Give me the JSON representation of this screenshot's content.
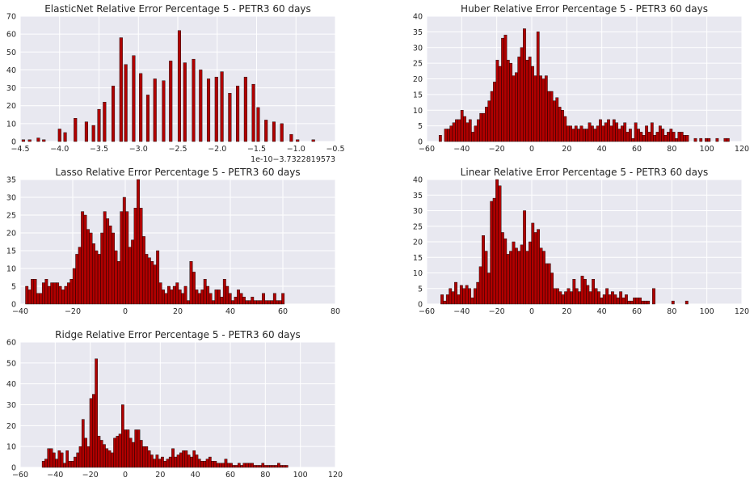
{
  "chart_data": [
    {
      "type": "bar",
      "title": "ElasticNet Relative Error Percentage 5 - PETR3 60 days",
      "x_offset_label": "1e-10−3.7322819573",
      "xlim": [
        -4.5,
        -0.5
      ],
      "ylim": [
        0,
        70
      ],
      "xticks": [
        -4.5,
        -4.0,
        -3.5,
        -3.0,
        -2.5,
        -2.0,
        -1.5,
        -1.0,
        -0.5
      ],
      "xtick_labels": [
        "−4.5",
        "−4.0",
        "−3.5",
        "−3.0",
        "−2.5",
        "−2.0",
        "−1.5",
        "−1.0",
        "−0.5"
      ],
      "yticks": [
        0,
        10,
        20,
        30,
        40,
        50,
        60,
        70
      ],
      "ytick_labels": [
        "0",
        "10",
        "20",
        "30",
        "40",
        "50",
        "60",
        "70"
      ],
      "bin_width": 0.0376,
      "x": [
        -4.46,
        -4.38,
        -4.27,
        -4.2,
        -4.0,
        -3.93,
        -3.8,
        -3.66,
        -3.57,
        -3.5,
        -3.43,
        -3.32,
        -3.22,
        -3.16,
        -3.06,
        -2.97,
        -2.88,
        -2.79,
        -2.68,
        -2.59,
        -2.48,
        -2.41,
        -2.3,
        -2.21,
        -2.11,
        -2.01,
        -1.94,
        -1.84,
        -1.74,
        -1.64,
        -1.54,
        -1.48,
        -1.38,
        -1.28,
        -1.18,
        -1.06,
        -0.98,
        -0.78
      ],
      "values": [
        1,
        1,
        2,
        1,
        7,
        5,
        13,
        11,
        9,
        18,
        22,
        31,
        58,
        43,
        48,
        38,
        26,
        35,
        34,
        45,
        62,
        44,
        46,
        40,
        35,
        36,
        39,
        27,
        31,
        36,
        32,
        19,
        12,
        11,
        10,
        4,
        1,
        1
      ]
    },
    {
      "type": "bar",
      "title": "Huber Relative Error Percentage 5 - PETR3 60 days",
      "xlim": [
        -60,
        120
      ],
      "ylim": [
        0,
        40
      ],
      "xticks": [
        -60,
        -40,
        -20,
        0,
        20,
        40,
        60,
        80,
        100,
        120
      ],
      "xtick_labels": [
        "−60",
        "−40",
        "−20",
        "0",
        "20",
        "40",
        "60",
        "80",
        "100",
        "120"
      ],
      "yticks": [
        0,
        5,
        10,
        15,
        20,
        25,
        30,
        35,
        40
      ],
      "ytick_labels": [
        "0",
        "5",
        "10",
        "15",
        "20",
        "25",
        "30",
        "35",
        "40"
      ],
      "x_start": -53,
      "bin_width": 1.55,
      "values": [
        2,
        0,
        4,
        4,
        5,
        6,
        7,
        7,
        10,
        8,
        6,
        7,
        3,
        5,
        7,
        9,
        9,
        11,
        13,
        16,
        19,
        26,
        24,
        33,
        34,
        26,
        25,
        21,
        22,
        27,
        30,
        36,
        26,
        27,
        24,
        21,
        35,
        21,
        20,
        21,
        16,
        16,
        13,
        14,
        11,
        10,
        8,
        5,
        5,
        4,
        5,
        4,
        5,
        4,
        4,
        6,
        5,
        4,
        5,
        7,
        5,
        6,
        7,
        5,
        7,
        6,
        4,
        5,
        6,
        3,
        4,
        1,
        6,
        4,
        3,
        2,
        5,
        3,
        6,
        2,
        3,
        5,
        4,
        2,
        3,
        4,
        3,
        1,
        3,
        3,
        2,
        2,
        0,
        0,
        1,
        0,
        1,
        0,
        1,
        1,
        0,
        0,
        1,
        0,
        0,
        1,
        1
      ]
    },
    {
      "type": "bar",
      "title": "Lasso Relative Error Percentage 5 - PETR3 60 days",
      "xlim": [
        -40,
        80
      ],
      "ylim": [
        0,
        35
      ],
      "xticks": [
        -40,
        -20,
        0,
        20,
        40,
        60,
        80
      ],
      "xtick_labels": [
        "−40",
        "−20",
        "0",
        "20",
        "40",
        "60",
        "80"
      ],
      "yticks": [
        0,
        5,
        10,
        15,
        20,
        25,
        30,
        35
      ],
      "ytick_labels": [
        "0",
        "5",
        "10",
        "15",
        "20",
        "25",
        "30",
        "35"
      ],
      "x_start": -38,
      "bin_width": 1.06,
      "values": [
        5,
        4,
        7,
        7,
        3,
        3,
        6,
        7,
        5,
        6,
        6,
        6,
        5,
        4,
        5,
        6,
        7,
        10,
        14,
        16,
        26,
        25,
        21,
        20,
        17,
        15,
        14,
        20,
        26,
        24,
        22,
        20,
        15,
        12,
        26,
        30,
        26,
        16,
        18,
        27,
        35,
        27,
        19,
        14,
        13,
        12,
        11,
        15,
        6,
        4,
        3,
        5,
        4,
        5,
        6,
        4,
        3,
        5,
        1,
        12,
        9,
        4,
        3,
        4,
        7,
        5,
        3,
        1,
        4,
        4,
        2,
        7,
        5,
        3,
        1,
        2,
        4,
        3,
        2,
        1,
        1,
        2,
        1,
        1,
        1,
        3,
        1,
        1,
        1,
        3,
        1,
        1,
        3
      ]
    },
    {
      "type": "bar",
      "title": "Linear Relative Error Percentage 5 - PETR3 60 days",
      "xlim": [
        -60,
        120
      ],
      "ylim": [
        0,
        40
      ],
      "xticks": [
        -60,
        -40,
        -20,
        0,
        20,
        40,
        60,
        80,
        100,
        120
      ],
      "xtick_labels": [
        "−60",
        "−40",
        "−20",
        "0",
        "20",
        "40",
        "60",
        "80",
        "100",
        "120"
      ],
      "yticks": [
        0,
        5,
        10,
        15,
        20,
        25,
        30,
        35,
        40
      ],
      "ytick_labels": [
        "0",
        "5",
        "10",
        "15",
        "20",
        "25",
        "30",
        "35",
        "40"
      ],
      "x_start": -52,
      "bin_width": 1.57,
      "values": [
        3,
        1,
        3,
        5,
        4,
        7,
        3,
        6,
        5,
        6,
        5,
        2,
        5,
        7,
        12,
        22,
        17,
        10,
        33,
        34,
        40,
        38,
        23,
        21,
        16,
        17,
        20,
        18,
        17,
        19,
        30,
        17,
        20,
        26,
        23,
        24,
        18,
        17,
        13,
        13,
        10,
        5,
        5,
        4,
        3,
        4,
        5,
        4,
        8,
        5,
        4,
        9,
        8,
        6,
        4,
        8,
        5,
        4,
        2,
        3,
        5,
        3,
        4,
        3,
        2,
        4,
        2,
        3,
        1,
        1,
        2,
        2,
        2,
        1,
        1,
        1,
        0,
        5,
        0,
        0,
        0,
        0,
        0,
        0,
        1,
        0,
        0,
        0,
        0,
        1
      ]
    },
    {
      "type": "bar",
      "title": "Ridge Relative Error Percentage 5 - PETR3 60 days",
      "xlim": [
        -60,
        120
      ],
      "ylim": [
        0,
        60
      ],
      "xticks": [
        -60,
        -40,
        -20,
        0,
        20,
        40,
        60,
        80,
        100,
        120
      ],
      "xtick_labels": [
        "−60",
        "−40",
        "−20",
        "0",
        "20",
        "40",
        "60",
        "80",
        "100",
        "120"
      ],
      "yticks": [
        0,
        10,
        20,
        30,
        40,
        50,
        60
      ],
      "ytick_labels": [
        "0",
        "10",
        "20",
        "30",
        "40",
        "50",
        "60"
      ],
      "x_start": -47.5,
      "bin_width": 1.51,
      "values": [
        3,
        4,
        9,
        9,
        7,
        4,
        8,
        7,
        2,
        8,
        3,
        3,
        5,
        7,
        10,
        23,
        14,
        10,
        33,
        35,
        52,
        15,
        13,
        11,
        9,
        8,
        7,
        14,
        15,
        16,
        30,
        18,
        18,
        14,
        12,
        18,
        18,
        13,
        10,
        10,
        8,
        6,
        4,
        6,
        4,
        5,
        3,
        4,
        5,
        9,
        5,
        6,
        7,
        8,
        8,
        6,
        5,
        8,
        6,
        4,
        3,
        3,
        4,
        5,
        3,
        3,
        2,
        2,
        2,
        4,
        2,
        2,
        1,
        1,
        2,
        1,
        2,
        2,
        2,
        2,
        1,
        1,
        1,
        2,
        1,
        1,
        1,
        1,
        1,
        2,
        1,
        1,
        1
      ]
    }
  ],
  "colors": {
    "bar_fill": "#b00000",
    "bar_edge": "#000000",
    "plot_background": "#e8e8f0",
    "grid": "#ffffff",
    "text": "#262626"
  }
}
